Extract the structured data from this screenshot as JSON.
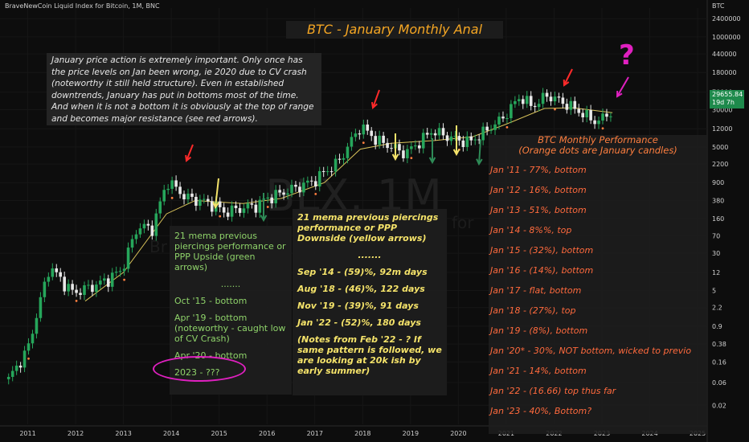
{
  "header": {
    "symbol_label": "BraveNewCoin Liquid Index for Bitcoin, 1M, BNC",
    "axis_currency": "BTC",
    "watermark_main": "BLX, 1M",
    "watermark_sub_left": "Br",
    "watermark_sub_right": "for"
  },
  "title": "BTC - January Monthly Anal",
  "intro_text": "January price action is extremely important. Only once has the price levels on Jan been wrong, ie 2020 due to CV crash (noteworthy it still held structure). Even in established downtrends, January has put in bottoms most of the time. And when it is not a bottom it is obviously at the top of range and becomes major resistance (see red arrows).",
  "green_panel": {
    "heading": "21 mema previous piercings performance or PPP Upside (green arrows)",
    "dots": ".......",
    "items": [
      "Oct '15 - bottom",
      "Apr '19 - bottom (noteworthy - caught low of CV Crash)",
      "Apr '20 - bottom",
      "2023 - ???"
    ]
  },
  "yellow_panel": {
    "heading": "21 mema previous piercings performance or PPP Downside (yellow arrows)",
    "dots": ".......",
    "items": [
      "Sep '14 - (59)%, 92m days",
      "Aug '18 - (46)%, 122 days",
      "Nov '19 - (39)%, 91 days",
      "Jan '22 - (52)%, 180 days",
      "(Notes from Feb '22 - ? If same pattern is followed, we are looking at 20k ish by early summer)"
    ]
  },
  "orange_panel": {
    "heading_1": "BTC Monthly Performance",
    "heading_2": "(Orange dots are January candles)",
    "rows": [
      "Jan '11 - 77%, bottom",
      "Jan '12 - 16%, bottom",
      "Jan '13 - 51%, bottom",
      "Jan '14 - 8%%, top",
      "Jan '15 - (32%), bottom",
      "Jan '16 - (14%), bottom",
      "Jan '17 - flat, bottom",
      "Jan '18 - (27%), top",
      "Jan '19 - (8%), bottom",
      "Jan '20* - 30%, NOT bottom, wicked to previo",
      "Jan '21 - 14%, bottom",
      "Jan '22 - (16.66) top thus far",
      "Jan '23 - 40%, Bottom?"
    ]
  },
  "price_tag": {
    "price": "29655.84",
    "countdown": "19d 7h"
  },
  "question_mark": "?",
  "colors": {
    "background": "#0d0d0d",
    "up_candle": "#26a65b",
    "down_candle": "#e8e8e8",
    "ema": "#d8c25a",
    "red_arrow": "#ff2a2a",
    "yellow_arrow": "#f5e36a",
    "green_arrow": "#2e8b57",
    "magenta": "#e020c0",
    "orange_text": "#ff6a3d"
  },
  "chart_data": {
    "type": "candlestick",
    "scale": "log",
    "y_ticks": [
      2400000,
      1000000,
      440000,
      180000,
      70000,
      30000,
      12000,
      5000,
      2200,
      900,
      380,
      160,
      70,
      30,
      12,
      5,
      2.2,
      0.9,
      0.38,
      0.16,
      0.06,
      0.02
    ],
    "x_ticks": [
      "2011",
      "2012",
      "2013",
      "2014",
      "2015",
      "2016",
      "2017",
      "2018",
      "2019",
      "2020",
      "2021",
      "2022",
      "2023",
      "2024",
      "2025"
    ],
    "ylim": [
      0.008,
      4000000
    ],
    "xlim": [
      2010.42,
      2025.2
    ],
    "annual_closes": [
      {
        "x": 2010.6,
        "y": 0.07
      },
      {
        "x": 2011.0,
        "y": 0.3
      },
      {
        "x": 2011.45,
        "y": 16
      },
      {
        "x": 2011.95,
        "y": 4.5
      },
      {
        "x": 2012.5,
        "y": 7
      },
      {
        "x": 2012.95,
        "y": 13
      },
      {
        "x": 2013.3,
        "y": 110
      },
      {
        "x": 2013.6,
        "y": 100
      },
      {
        "x": 2013.92,
        "y": 1000
      },
      {
        "x": 2014.3,
        "y": 450
      },
      {
        "x": 2014.9,
        "y": 320
      },
      {
        "x": 2015.1,
        "y": 220
      },
      {
        "x": 2015.8,
        "y": 310
      },
      {
        "x": 2016.0,
        "y": 430
      },
      {
        "x": 2016.5,
        "y": 650
      },
      {
        "x": 2016.95,
        "y": 960
      },
      {
        "x": 2017.5,
        "y": 2500
      },
      {
        "x": 2017.95,
        "y": 13800
      },
      {
        "x": 2018.3,
        "y": 7000
      },
      {
        "x": 2018.9,
        "y": 3700
      },
      {
        "x": 2019.45,
        "y": 11000
      },
      {
        "x": 2019.95,
        "y": 7200
      },
      {
        "x": 2020.25,
        "y": 6500
      },
      {
        "x": 2020.9,
        "y": 19000
      },
      {
        "x": 2021.3,
        "y": 58000
      },
      {
        "x": 2021.55,
        "y": 35000
      },
      {
        "x": 2021.85,
        "y": 61000
      },
      {
        "x": 2022.3,
        "y": 38000
      },
      {
        "x": 2022.9,
        "y": 16500
      },
      {
        "x": 2023.22,
        "y": 29655
      }
    ],
    "ema_21": [
      {
        "x": 2012.2,
        "y": 3
      },
      {
        "x": 2013.0,
        "y": 12
      },
      {
        "x": 2013.9,
        "y": 200
      },
      {
        "x": 2014.5,
        "y": 380
      },
      {
        "x": 2015.5,
        "y": 330
      },
      {
        "x": 2016.3,
        "y": 420
      },
      {
        "x": 2017.2,
        "y": 900
      },
      {
        "x": 2017.95,
        "y": 4500
      },
      {
        "x": 2018.6,
        "y": 6000
      },
      {
        "x": 2019.5,
        "y": 6800
      },
      {
        "x": 2020.3,
        "y": 8200
      },
      {
        "x": 2021.0,
        "y": 15000
      },
      {
        "x": 2021.8,
        "y": 32000
      },
      {
        "x": 2022.4,
        "y": 33000
      },
      {
        "x": 2023.22,
        "y": 26000
      }
    ]
  }
}
